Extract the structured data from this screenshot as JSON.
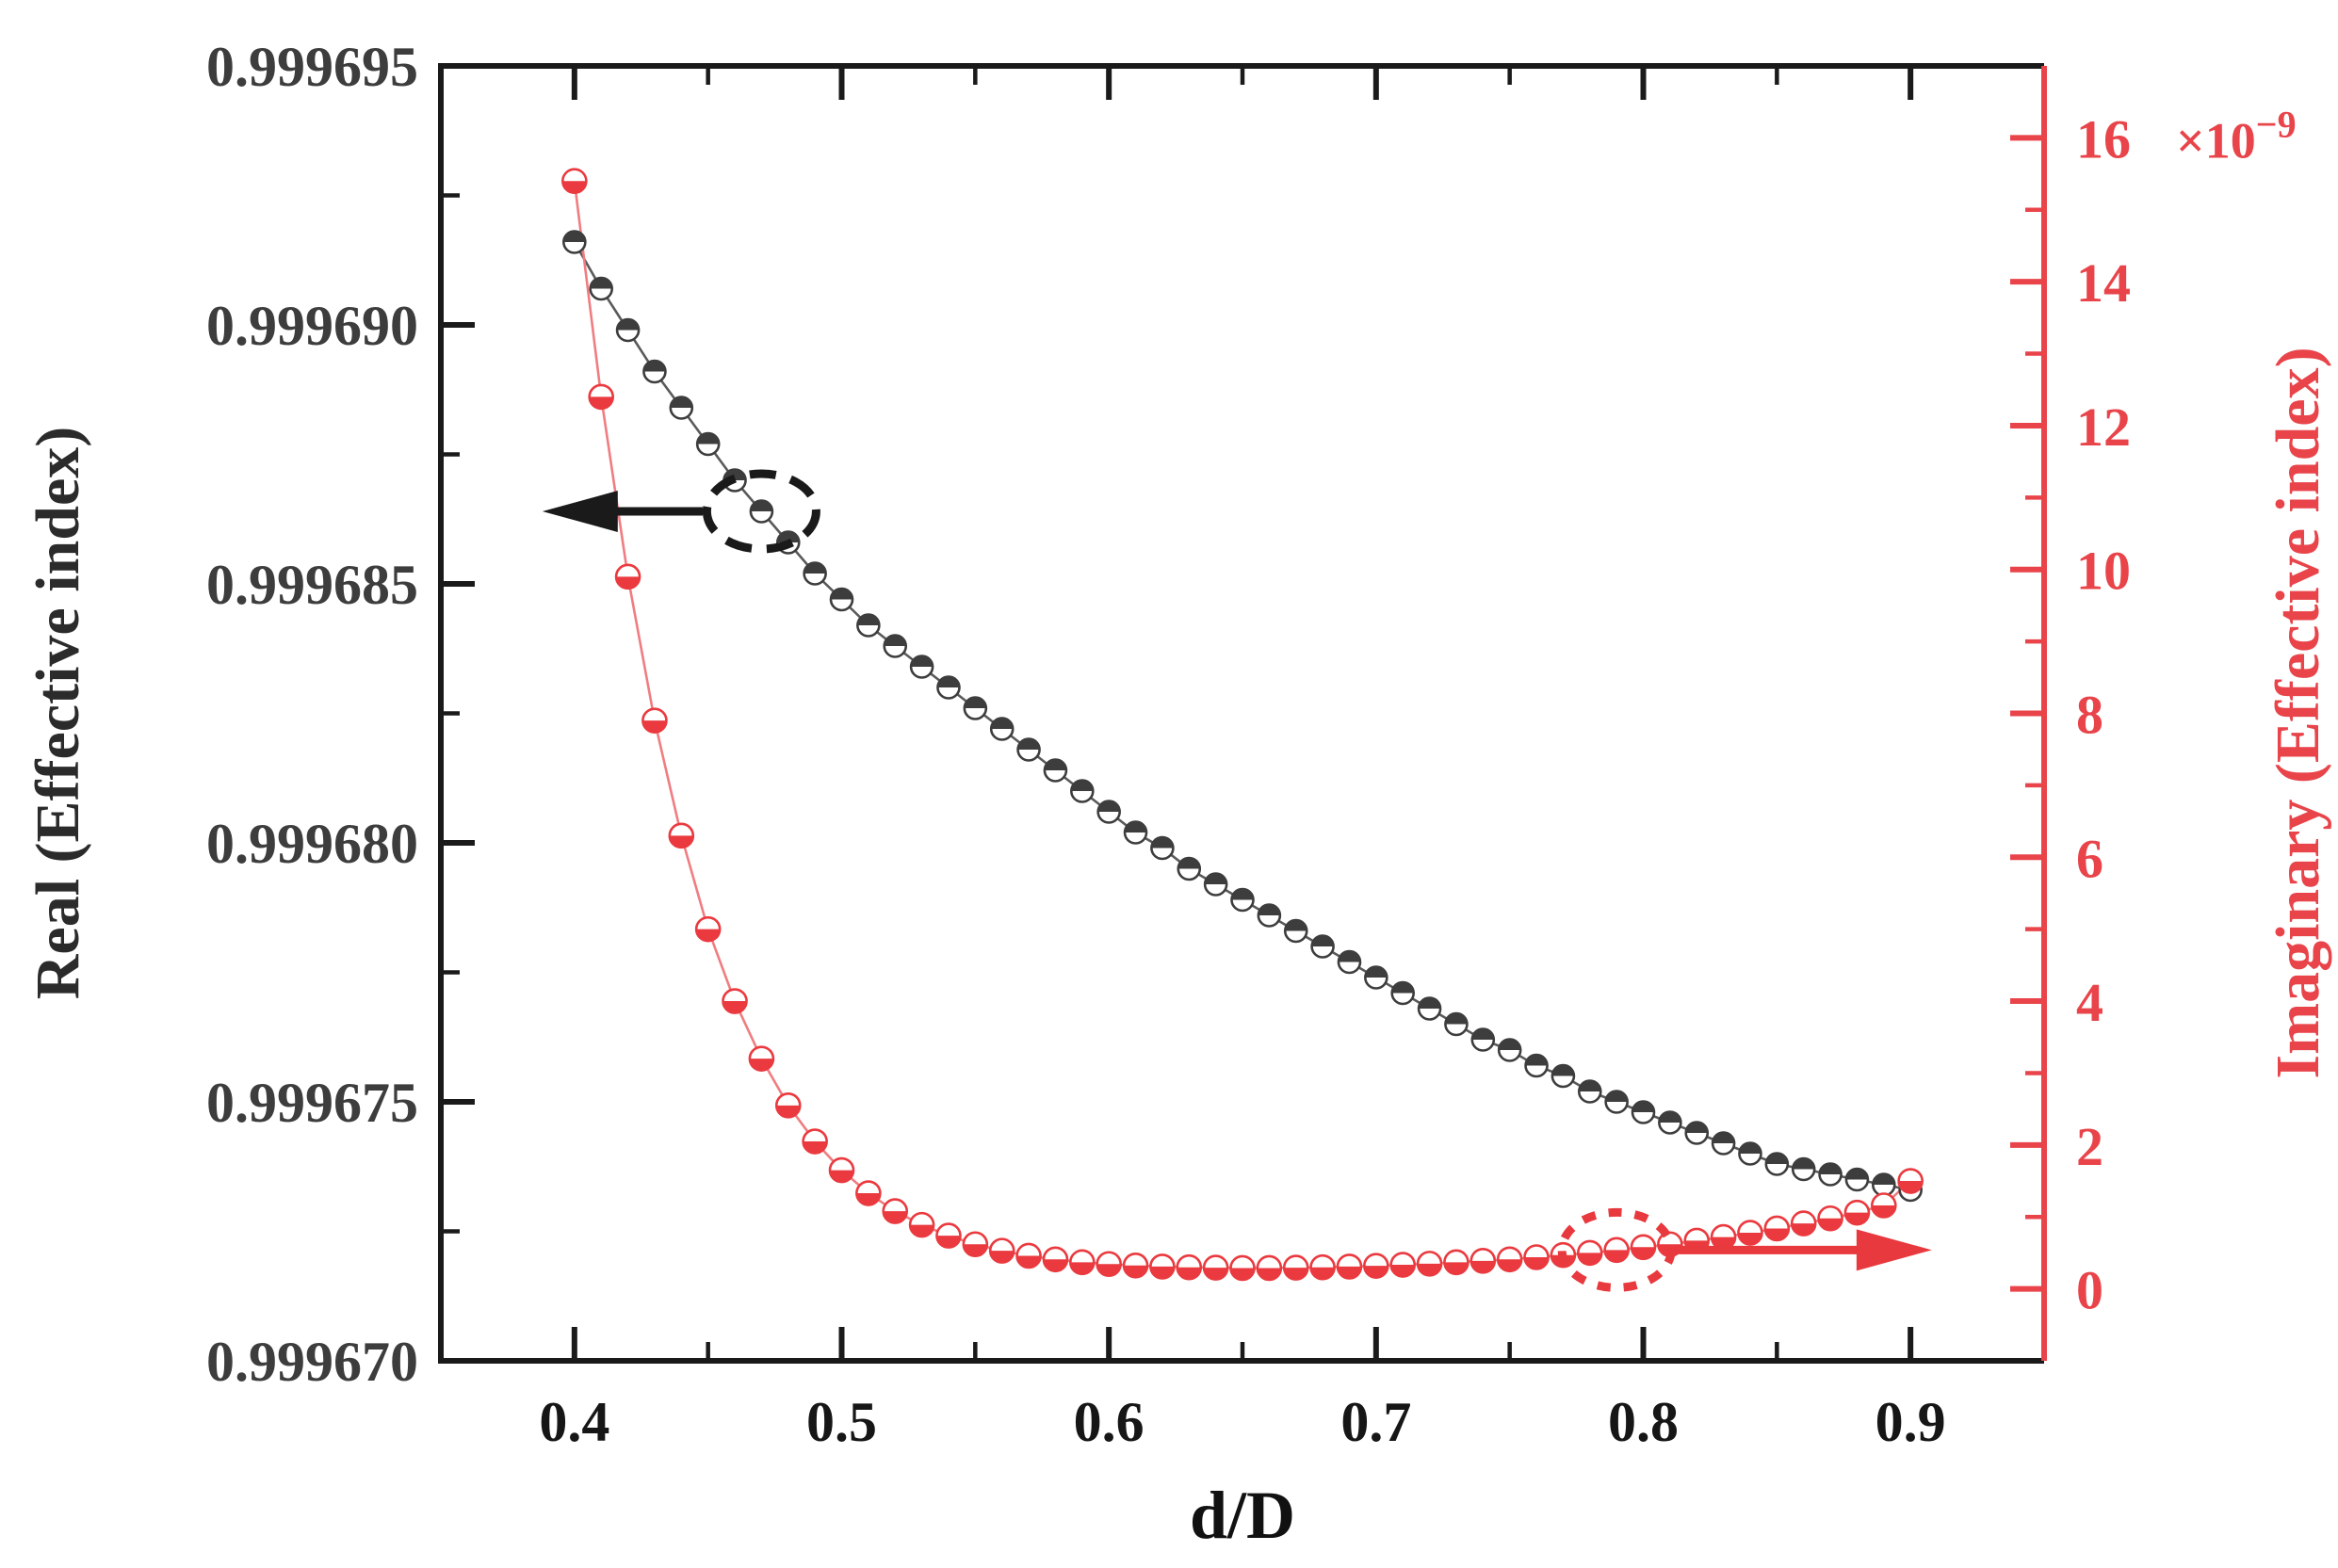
{
  "chart_data": {
    "type": "line",
    "title": "",
    "grid": false,
    "legend": "none",
    "x_axis": {
      "label": "d/D",
      "tick_labels": [
        "0.4",
        "0.5",
        "0.6",
        "0.7",
        "0.8",
        "0.9"
      ],
      "tick_values": [
        0.4,
        0.5,
        0.6,
        0.7,
        0.8,
        0.9
      ],
      "minor_tick_values": [
        0.45,
        0.55,
        0.65,
        0.75,
        0.85
      ],
      "range": [
        0.35,
        0.95
      ],
      "color": "#1a1a1a"
    },
    "left_axis": {
      "label": "Real (Effective index)",
      "tick_labels": [
        "0.999695",
        "0.999690",
        "0.999685",
        "0.999680",
        "0.999675",
        "0.999670"
      ],
      "tick_values": [
        0.999695,
        0.99969,
        0.999685,
        0.99968,
        0.999675,
        0.99967
      ],
      "minor_tick_values": [
        0.9996925,
        0.9996875,
        0.9996825,
        0.9996775,
        0.9996725
      ],
      "range": [
        0.99967,
        0.999695
      ],
      "color": "#1a1a1a",
      "text_color": "#3d3d3d"
    },
    "right_axis": {
      "label": "Imaginary (Effective index)",
      "tick_labels": [
        "0",
        "2",
        "4",
        "6",
        "8",
        "10",
        "12",
        "14",
        "16"
      ],
      "tick_values": [
        0,
        2,
        4,
        6,
        8,
        10,
        12,
        14,
        16
      ],
      "minor_tick_values": [
        1,
        3,
        5,
        7,
        9,
        11,
        13,
        15,
        17
      ],
      "multiplier_base": "×10",
      "multiplier_exponent": "−9",
      "range": [
        -1,
        17
      ],
      "color": "#e8444a"
    },
    "series": [
      {
        "name": "Real (Effective index)",
        "axis": "left",
        "marker": "circle-top-half-filled",
        "marker_color": "#3d3d3d",
        "line_color": "#5a5a5a",
        "x": [
          0.4,
          0.41,
          0.42,
          0.43,
          0.44,
          0.45,
          0.46,
          0.47,
          0.48,
          0.49,
          0.5,
          0.51,
          0.52,
          0.53,
          0.54,
          0.55,
          0.56,
          0.57,
          0.58,
          0.59,
          0.6,
          0.61,
          0.62,
          0.63,
          0.64,
          0.65,
          0.66,
          0.67,
          0.68,
          0.69,
          0.7,
          0.71,
          0.72,
          0.73,
          0.74,
          0.75,
          0.76,
          0.77,
          0.78,
          0.79,
          0.8,
          0.81,
          0.82,
          0.83,
          0.84,
          0.85,
          0.86,
          0.87,
          0.88,
          0.89,
          0.9
        ],
        "values": [
          0.9996916,
          0.9996907,
          0.9996899,
          0.9996891,
          0.9996884,
          0.9996877,
          0.999687,
          0.9996864,
          0.9996858,
          0.9996852,
          0.9996847,
          0.9996842,
          0.9996838,
          0.9996834,
          0.999683,
          0.9996826,
          0.9996822,
          0.9996818,
          0.9996814,
          0.999681,
          0.9996806,
          0.9996802,
          0.9996799,
          0.9996795,
          0.9996792,
          0.9996789,
          0.9996786,
          0.9996783,
          0.999678,
          0.9996777,
          0.9996774,
          0.9996771,
          0.9996768,
          0.9996765,
          0.9996762,
          0.999676,
          0.9996757,
          0.9996755,
          0.9996752,
          0.999675,
          0.9996748,
          0.9996746,
          0.9996744,
          0.9996742,
          0.999674,
          0.9996738,
          0.9996737,
          0.9996736,
          0.9996735,
          0.9996734,
          0.9996733
        ]
      },
      {
        "name": "Imaginary (Effective index)",
        "axis": "right",
        "marker": "circle-bottom-half-filled",
        "marker_color": "#ea3a3f",
        "line_color": "#ef7d81",
        "x": [
          0.4,
          0.41,
          0.42,
          0.43,
          0.44,
          0.45,
          0.46,
          0.47,
          0.48,
          0.49,
          0.5,
          0.51,
          0.52,
          0.53,
          0.54,
          0.55,
          0.56,
          0.57,
          0.58,
          0.59,
          0.6,
          0.61,
          0.62,
          0.63,
          0.64,
          0.65,
          0.66,
          0.67,
          0.68,
          0.69,
          0.7,
          0.71,
          0.72,
          0.73,
          0.74,
          0.75,
          0.76,
          0.77,
          0.78,
          0.79,
          0.8,
          0.81,
          0.82,
          0.83,
          0.84,
          0.85,
          0.86,
          0.87,
          0.88,
          0.89,
          0.9
        ],
        "values": [
          15.4,
          12.4,
          9.9,
          7.9,
          6.3,
          5.0,
          4.0,
          3.2,
          2.55,
          2.05,
          1.65,
          1.33,
          1.08,
          0.89,
          0.74,
          0.62,
          0.53,
          0.46,
          0.41,
          0.37,
          0.345,
          0.325,
          0.31,
          0.3,
          0.295,
          0.29,
          0.29,
          0.295,
          0.3,
          0.31,
          0.32,
          0.335,
          0.35,
          0.37,
          0.39,
          0.41,
          0.44,
          0.47,
          0.5,
          0.54,
          0.58,
          0.62,
          0.67,
          0.72,
          0.78,
          0.84,
          0.91,
          0.98,
          1.06,
          1.16,
          1.5
        ]
      }
    ],
    "annotations": [
      {
        "id": "real-axis-pointer",
        "color": "#1a1a1a",
        "ellipse_on": {
          "series": 0,
          "x": 0.47
        },
        "ellipse_dash": "28 16",
        "arrow": {
          "x_from": 0.448,
          "x_to": 0.388,
          "direction": "left"
        }
      },
      {
        "id": "imag-axis-pointer",
        "color": "#e8393e",
        "ellipse_on": {
          "series": 1,
          "x": 0.79
        },
        "ellipse_dash": "14 14",
        "arrow": {
          "x_from": 0.812,
          "x_to": 0.908,
          "direction": "right"
        }
      }
    ]
  }
}
